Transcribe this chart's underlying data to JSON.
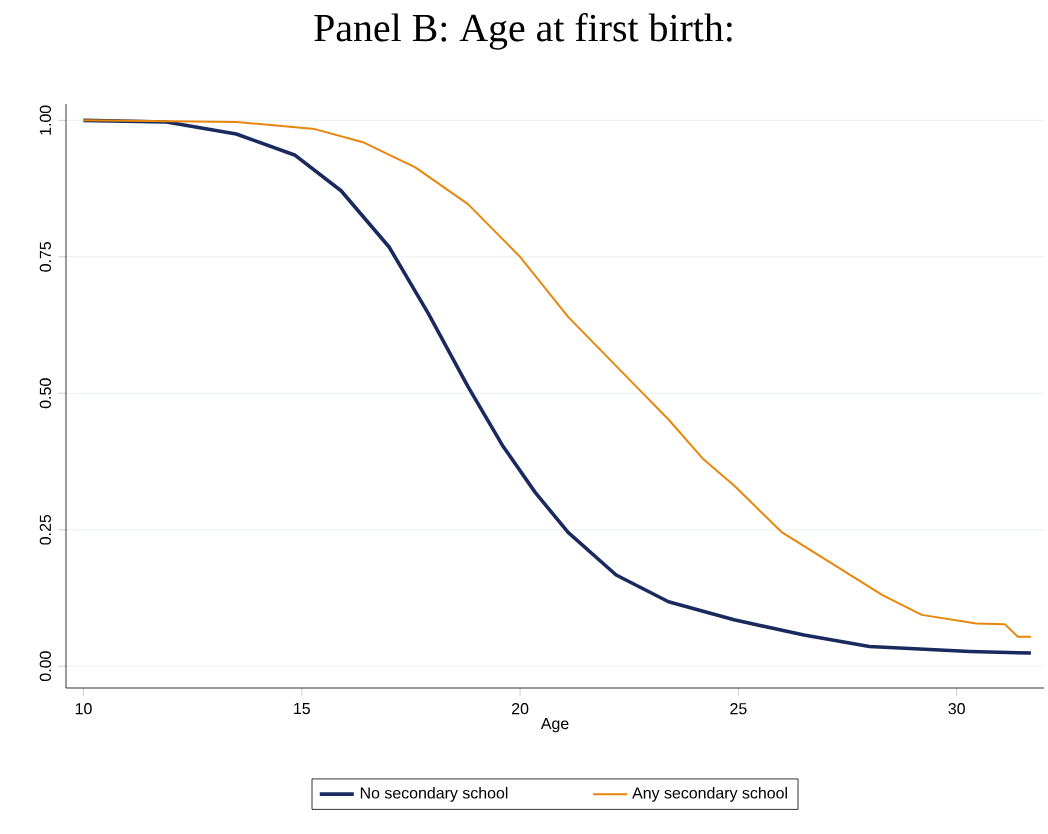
{
  "chart_data": {
    "type": "line",
    "title": "Panel B: Age at first birth:",
    "xlabel": "Age",
    "xlim": [
      9.6,
      32
    ],
    "ylim": [
      -0.04,
      1.03
    ],
    "xticks": [
      10,
      15,
      20,
      25,
      30
    ],
    "yticks": [
      {
        "value": 0,
        "label": "0.00"
      },
      {
        "value": 0.25,
        "label": "0.25"
      },
      {
        "value": 0.5,
        "label": "0.50"
      },
      {
        "value": 0.75,
        "label": "0.75"
      },
      {
        "value": 1,
        "label": "1.00"
      }
    ],
    "grid": "y",
    "legend": "bottom",
    "series": [
      {
        "name": "No secondary school",
        "color": "#1a2a5e",
        "x": [
          10.0,
          11.9,
          13.5,
          14.85,
          15.9,
          17.0,
          17.9,
          18.8,
          19.6,
          20.35,
          21.1,
          22.2,
          23.4,
          24.9,
          26.5,
          28.0,
          30.3,
          31.7
        ],
        "values": [
          1.0,
          0.997,
          0.975,
          0.936,
          0.871,
          0.768,
          0.646,
          0.513,
          0.404,
          0.318,
          0.245,
          0.167,
          0.118,
          0.085,
          0.057,
          0.036,
          0.027,
          0.024
        ]
      },
      {
        "name": "Any secondary school",
        "color": "#e8860c",
        "x": [
          10.0,
          13.5,
          15.3,
          16.4,
          17.6,
          18.8,
          20.0,
          21.1,
          22.65,
          23.4,
          24.2,
          24.9,
          26.0,
          27.2,
          28.3,
          29.2,
          30.45,
          31.1,
          31.4,
          31.7
        ],
        "values": [
          1.0,
          0.997,
          0.984,
          0.96,
          0.914,
          0.847,
          0.75,
          0.64,
          0.513,
          0.452,
          0.379,
          0.331,
          0.245,
          0.185,
          0.13,
          0.094,
          0.078,
          0.077,
          0.054,
          0.054
        ]
      }
    ]
  }
}
